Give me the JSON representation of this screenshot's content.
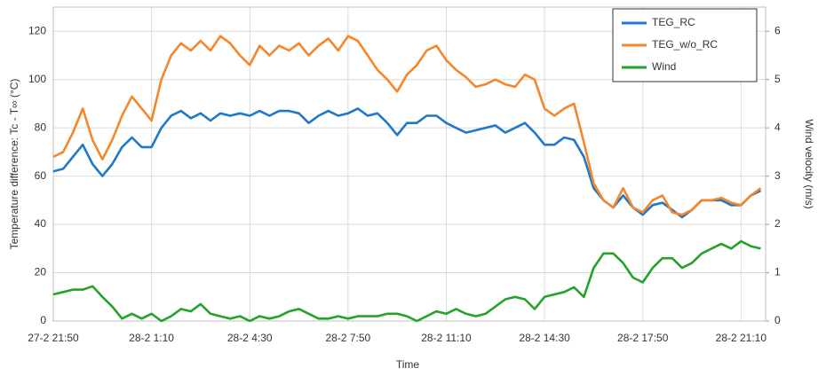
{
  "chart_data": {
    "type": "line",
    "xlabel": "Time",
    "ylabel": "Temperature difference: Tc - T∞ (°C)",
    "y2label": "Wind velocity (m/s)",
    "categories": [
      "27-2 21:50",
      null,
      null,
      null,
      null,
      null,
      null,
      null,
      null,
      null,
      "28-2 1:10",
      null,
      null,
      null,
      null,
      null,
      null,
      null,
      null,
      null,
      "28-2 4:30",
      null,
      null,
      null,
      null,
      null,
      null,
      null,
      null,
      null,
      "28-2 7:50",
      null,
      null,
      null,
      null,
      null,
      null,
      null,
      null,
      null,
      "28-2 11:10",
      null,
      null,
      null,
      null,
      null,
      null,
      null,
      null,
      null,
      "28-2 14:30",
      null,
      null,
      null,
      null,
      null,
      null,
      null,
      null,
      null,
      "28-2 17:50",
      null,
      null,
      null,
      null,
      null,
      null,
      null,
      null,
      null,
      "28-2 21:10",
      null,
      null
    ],
    "series": [
      {
        "name": "TEG_RC",
        "color": "#1f78c8",
        "values": [
          62,
          63,
          68,
          73,
          65,
          60,
          65,
          72,
          76,
          72,
          72,
          80,
          85,
          87,
          84,
          86,
          83,
          86,
          85,
          86,
          85,
          87,
          85,
          87,
          87,
          86,
          82,
          85,
          87,
          85,
          86,
          88,
          85,
          86,
          82,
          77,
          82,
          82,
          85,
          85,
          82,
          80,
          78,
          79,
          80,
          81,
          78,
          80,
          82,
          78,
          73,
          73,
          76,
          75,
          68,
          55,
          50,
          47,
          52,
          47,
          44,
          48,
          49,
          46,
          43,
          46,
          50,
          50,
          50,
          48,
          48,
          52,
          54
        ]
      },
      {
        "name": "TEG_w/o_RC",
        "color": "#f5862a",
        "values": [
          68,
          70,
          78,
          88,
          75,
          67,
          75,
          85,
          93,
          88,
          83,
          100,
          110,
          115,
          112,
          116,
          112,
          118,
          115,
          110,
          106,
          114,
          110,
          114,
          112,
          115,
          110,
          114,
          117,
          112,
          118,
          116,
          110,
          104,
          100,
          95,
          102,
          106,
          112,
          114,
          108,
          104,
          101,
          97,
          98,
          100,
          98,
          97,
          102,
          100,
          88,
          85,
          88,
          90,
          74,
          57,
          50,
          47,
          55,
          47,
          45,
          50,
          52,
          45,
          44,
          46,
          50,
          50,
          51,
          49,
          48,
          52,
          55
        ]
      },
      {
        "name": "Wind",
        "color": "#26a22c",
        "axis": "y2",
        "values": [
          0.55,
          0.6,
          0.65,
          0.65,
          0.72,
          0.5,
          0.3,
          0.05,
          0.15,
          0.05,
          0.15,
          0,
          0.1,
          0.25,
          0.2,
          0.35,
          0.15,
          0.1,
          0.05,
          0.1,
          0,
          0.1,
          0.05,
          0.1,
          0.2,
          0.25,
          0.15,
          0.05,
          0.05,
          0.1,
          0.05,
          0.1,
          0.1,
          0.1,
          0.15,
          0.15,
          0.1,
          0,
          0.1,
          0.2,
          0.15,
          0.25,
          0.15,
          0.1,
          0.15,
          0.3,
          0.45,
          0.5,
          0.45,
          0.25,
          0.5,
          0.55,
          0.6,
          0.7,
          0.5,
          1.1,
          1.4,
          1.4,
          1.2,
          0.9,
          0.8,
          1.1,
          1.3,
          1.3,
          1.1,
          1.2,
          1.4,
          1.5,
          1.6,
          1.5,
          1.65,
          1.55,
          1.5
        ]
      }
    ],
    "ylim": [
      0,
      130
    ],
    "yticks": [
      0,
      20,
      40,
      60,
      80,
      100,
      120
    ],
    "y2lim": [
      0,
      6.5
    ],
    "y2ticks": [
      0,
      1,
      2,
      3,
      4,
      5,
      6
    ],
    "grid": true,
    "legend": "upper right"
  }
}
